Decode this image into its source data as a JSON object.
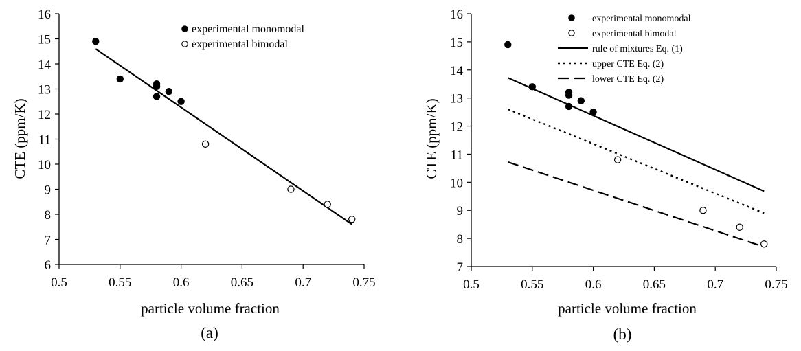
{
  "chart_data": [
    {
      "type": "scatter",
      "panel_label": "(a)",
      "xlabel": "particle volume fraction",
      "ylabel": "CTE (ppm/K)",
      "xlim": [
        0.5,
        0.75
      ],
      "ylim": [
        6,
        16
      ],
      "xticks": [
        "0.5",
        "0.55",
        "0.6",
        "0.65",
        "0.7",
        "0.75"
      ],
      "yticks": [
        "6",
        "7",
        "8",
        "9",
        "10",
        "11",
        "12",
        "13",
        "14",
        "15",
        "16"
      ],
      "legend_position": "top-right",
      "series": [
        {
          "name": "experimental monomodal",
          "marker": "filled-circle",
          "x": [
            0.53,
            0.55,
            0.58,
            0.58,
            0.58,
            0.59,
            0.6
          ],
          "y": [
            14.9,
            13.4,
            13.2,
            13.1,
            12.7,
            12.9,
            12.5
          ]
        },
        {
          "name": "experimental bimodal",
          "marker": "open-circle",
          "x": [
            0.62,
            0.69,
            0.72,
            0.74
          ],
          "y": [
            10.8,
            9.0,
            8.4,
            7.8
          ]
        },
        {
          "name": "",
          "style": "solid-line",
          "x": [
            0.53,
            0.74
          ],
          "y": [
            14.6,
            7.6
          ]
        }
      ]
    },
    {
      "type": "scatter",
      "panel_label": "(b)",
      "xlabel": "particle volume fraction",
      "ylabel": "CTE (ppm/K)",
      "xlim": [
        0.5,
        0.75
      ],
      "ylim": [
        7,
        16
      ],
      "xticks": [
        "0.5",
        "0.55",
        "0.6",
        "0.65",
        "0.7",
        "0.75"
      ],
      "yticks": [
        "7",
        "8",
        "9",
        "10",
        "11",
        "12",
        "13",
        "14",
        "15",
        "16"
      ],
      "legend_position": "top-right",
      "series": [
        {
          "name": "experimental monomodal",
          "marker": "filled-circle",
          "x": [
            0.53,
            0.55,
            0.58,
            0.58,
            0.58,
            0.59,
            0.6
          ],
          "y": [
            14.9,
            13.4,
            13.2,
            13.1,
            12.7,
            12.9,
            12.5
          ]
        },
        {
          "name": "experimental bimodal",
          "marker": "open-circle",
          "x": [
            0.62,
            0.69,
            0.72,
            0.74
          ],
          "y": [
            10.8,
            9.0,
            8.4,
            7.8
          ]
        },
        {
          "name": "rule of mixtures Eq. (1)",
          "style": "solid-line",
          "x": [
            0.53,
            0.74
          ],
          "y": [
            13.72,
            9.68
          ]
        },
        {
          "name": "upper CTE Eq. (2)",
          "style": "dotted-line",
          "x": [
            0.53,
            0.74
          ],
          "y": [
            12.6,
            8.9
          ]
        },
        {
          "name": "lower CTE Eq. (2)",
          "style": "dashed-line",
          "x": [
            0.53,
            0.74
          ],
          "y": [
            10.72,
            7.7
          ]
        }
      ]
    }
  ]
}
